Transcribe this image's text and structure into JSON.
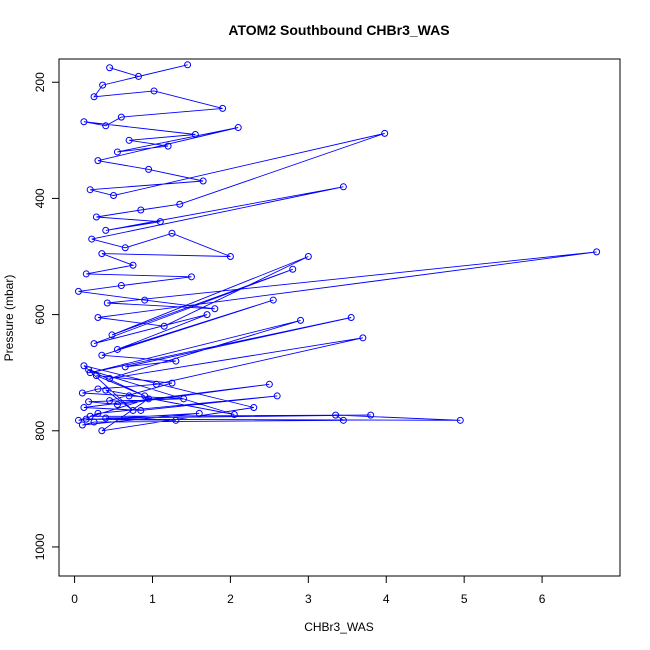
{
  "chart_data": {
    "type": "scatter",
    "title": "ATOM2 Southbound CHBr3_WAS",
    "xlabel": "CHBr3_WAS",
    "ylabel": "Pressure (mbar)",
    "xlim": [
      -0.2,
      7.0
    ],
    "ylim": [
      1050,
      160
    ],
    "y_reversed": true,
    "x_ticks": [
      0,
      1,
      2,
      3,
      4,
      5,
      6
    ],
    "y_ticks": [
      200,
      400,
      600,
      800,
      1000
    ],
    "grid": false,
    "legend": "none",
    "series_color": "#0000ff",
    "marker": "open-circle",
    "connected": true,
    "x": [
      0.45,
      0.82,
      1.45,
      0.36,
      0.25,
      1.02,
      1.9,
      0.6,
      0.4,
      0.12,
      1.55,
      0.7,
      1.2,
      0.55,
      2.1,
      0.3,
      0.95,
      1.65,
      0.2,
      0.5,
      3.98,
      1.35,
      0.85,
      0.28,
      1.1,
      0.4,
      3.45,
      0.22,
      0.65,
      1.25,
      2.0,
      0.35,
      0.75,
      0.15,
      1.5,
      0.6,
      0.05,
      0.9,
      1.8,
      0.42,
      6.7,
      0.3,
      1.15,
      3.0,
      0.48,
      2.8,
      0.25,
      1.7,
      0.55,
      2.55,
      0.35,
      1.3,
      0.65,
      3.55,
      0.2,
      2.9,
      0.45,
      3.7,
      1.05,
      0.3,
      0.1,
      0.7,
      1.4,
      0.18,
      0.55,
      2.5,
      0.12,
      0.85,
      2.6,
      0.3,
      0.2,
      3.8,
      0.4,
      1.3,
      0.15,
      4.95,
      3.35,
      3.45,
      0.25,
      0.1,
      1.6,
      0.05,
      0.95,
      0.35,
      2.3,
      0.12,
      0.75,
      0.4,
      2.05,
      0.18,
      0.9,
      0.28,
      1.25,
      0.45
    ],
    "y": [
      175,
      190,
      170,
      205,
      225,
      215,
      245,
      260,
      275,
      268,
      290,
      300,
      310,
      320,
      278,
      335,
      350,
      370,
      385,
      395,
      288,
      410,
      420,
      432,
      440,
      455,
      380,
      470,
      485,
      460,
      500,
      495,
      515,
      530,
      535,
      550,
      560,
      575,
      590,
      580,
      492,
      605,
      620,
      500,
      635,
      522,
      650,
      600,
      660,
      575,
      670,
      680,
      690,
      605,
      700,
      610,
      710,
      640,
      720,
      728,
      735,
      740,
      745,
      750,
      755,
      720,
      760,
      765,
      740,
      770,
      775,
      773,
      778,
      782,
      780,
      782,
      773,
      782,
      785,
      790,
      770,
      782,
      745,
      800,
      760,
      688,
      765,
      730,
      772,
      695,
      740,
      705,
      718,
      748
    ]
  }
}
